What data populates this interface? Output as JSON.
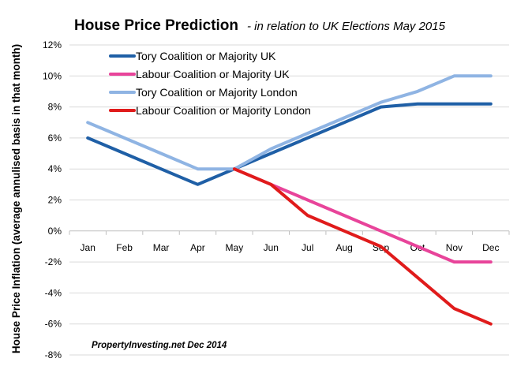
{
  "chart_data": {
    "type": "line",
    "title": "House Price Prediction",
    "subtitle": "- in relation to UK Elections May 2015",
    "xlabel": "",
    "ylabel": "House Price Inflation (average annulised basis in that month)",
    "categories": [
      "Jan",
      "Feb",
      "Mar",
      "Apr",
      "May",
      "Jun",
      "Jul",
      "Aug",
      "Sep",
      "Oct",
      "Nov",
      "Dec"
    ],
    "ylim": [
      -8,
      12
    ],
    "yticks": [
      -8,
      -6,
      -4,
      -2,
      0,
      2,
      4,
      6,
      8,
      10,
      12
    ],
    "ytick_labels": [
      "-8%",
      "-6%",
      "-4%",
      "-2%",
      "0%",
      "2%",
      "4%",
      "6%",
      "8%",
      "10%",
      "12%"
    ],
    "grid": "horizontal",
    "legend_position": "top-left",
    "series": [
      {
        "name": "Tory Coalition or Majority UK",
        "color": "#1f5fa6",
        "values": [
          6,
          5,
          4,
          3,
          4,
          5,
          6,
          7,
          8,
          8.2,
          8.2,
          8.2
        ]
      },
      {
        "name": "Labour Coalition or Majority UK",
        "color": "#e8449a",
        "values": [
          null,
          null,
          null,
          null,
          4,
          3,
          2,
          1,
          0,
          -1,
          -2,
          -2
        ]
      },
      {
        "name": "Tory Coalition or Majority London",
        "color": "#8fb4e3",
        "values": [
          7,
          6,
          5,
          4,
          4,
          5.3,
          6.3,
          7.3,
          8.3,
          9,
          10,
          10
        ]
      },
      {
        "name": "Labour Coalition or Majority London",
        "color": "#e01b1b",
        "values": [
          null,
          null,
          null,
          null,
          4,
          3,
          1,
          0,
          -1,
          -3,
          -5,
          -6
        ]
      }
    ],
    "annotation": "PropertyInvesting.net  Dec 2014"
  }
}
